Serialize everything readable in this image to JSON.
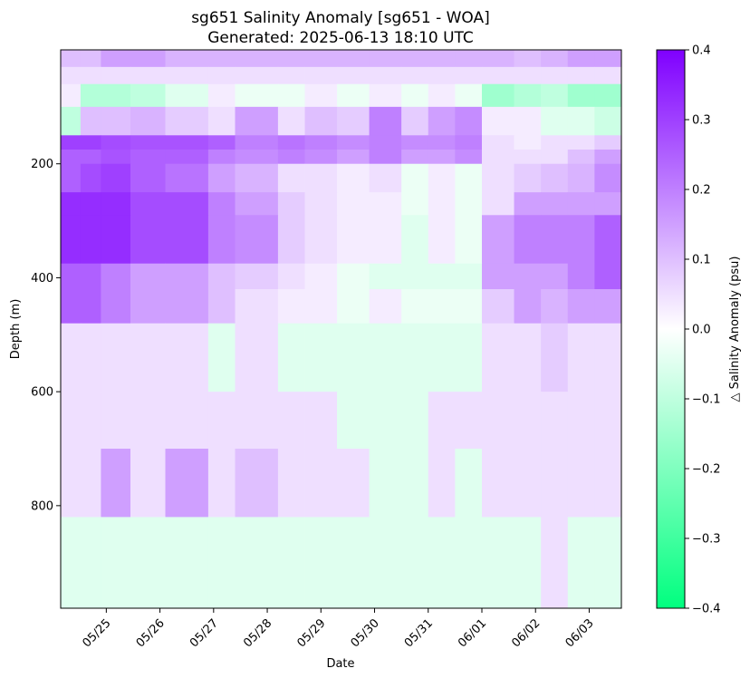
{
  "chart_data": {
    "type": "heatmap",
    "title": "sg651 Salinity Anomaly [sg651 - WOA]",
    "subtitle": "Generated: 2025-06-13 18:10 UTC",
    "xlabel": "Date",
    "ylabel": "Depth (m)",
    "colorbar_label": "△ Salinity Anomaly (psu)",
    "x_ticks": [
      "05/25",
      "05/26",
      "05/27",
      "05/28",
      "05/29",
      "05/30",
      "05/31",
      "06/01",
      "06/02",
      "06/03"
    ],
    "x_tick_days": [
      1,
      2,
      3,
      4,
      5,
      6,
      7,
      8,
      9,
      10
    ],
    "xlim_days": [
      0.15,
      10.6
    ],
    "y_ticks": [
      200,
      400,
      600,
      800
    ],
    "ylim": [
      980,
      0
    ],
    "colorbar_ticks": [
      0.4,
      0.3,
      0.2,
      0.1,
      0.0,
      -0.1,
      -0.2,
      -0.3,
      -0.4
    ],
    "colorbar_tick_labels": [
      "0.4",
      "0.3",
      "0.2",
      "0.1",
      "0.0",
      "−0.1",
      "−0.2",
      "−0.3",
      "−0.4"
    ],
    "vlim": [
      -0.4,
      0.4
    ],
    "colormap": {
      "negative": "#00ff7f",
      "zero": "#ffffff",
      "positive": "#7f00ff"
    },
    "x_day_breaks": [
      0.15,
      0.52,
      0.9,
      1.45,
      2.1,
      2.9,
      3.4,
      4.2,
      4.7,
      5.3,
      5.9,
      6.5,
      7.0,
      7.5,
      8.0,
      8.6,
      9.1,
      9.6,
      10.1,
      10.6
    ],
    "depth_breaks": [
      0,
      30,
      60,
      100,
      150,
      175,
      200,
      250,
      290,
      375,
      420,
      480,
      600,
      700,
      820,
      980
    ],
    "values": [
      [
        0.1,
        0.1,
        0.15,
        0.15,
        0.12,
        0.12,
        0.12,
        0.12,
        0.12,
        0.12,
        0.12,
        0.12,
        0.12,
        0.12,
        0.12,
        0.1,
        0.12,
        0.15,
        0.15
      ],
      [
        0.05,
        0.05,
        0.05,
        0.05,
        0.05,
        0.05,
        0.05,
        0.05,
        0.05,
        0.05,
        0.05,
        0.05,
        0.05,
        0.05,
        0.05,
        0.05,
        0.05,
        0.05,
        0.05
      ],
      [
        0.03,
        -0.12,
        -0.12,
        -0.1,
        -0.05,
        0.03,
        -0.03,
        -0.03,
        0.03,
        -0.03,
        0.03,
        -0.03,
        0.03,
        -0.03,
        -0.15,
        -0.12,
        -0.1,
        -0.15,
        -0.15
      ],
      [
        -0.1,
        0.1,
        0.1,
        0.12,
        0.08,
        0.05,
        0.15,
        0.05,
        0.1,
        0.08,
        0.2,
        0.08,
        0.15,
        0.18,
        0.03,
        0.03,
        -0.05,
        -0.05,
        -0.08
      ],
      [
        0.3,
        0.3,
        0.28,
        0.27,
        0.27,
        0.25,
        0.2,
        0.22,
        0.2,
        0.18,
        0.2,
        0.18,
        0.18,
        0.2,
        0.05,
        0.03,
        0.05,
        0.05,
        0.08
      ],
      [
        0.25,
        0.25,
        0.27,
        0.25,
        0.25,
        0.2,
        0.18,
        0.2,
        0.18,
        0.15,
        0.2,
        0.15,
        0.15,
        0.18,
        0.05,
        0.05,
        0.05,
        0.1,
        0.15
      ],
      [
        0.25,
        0.28,
        0.3,
        0.25,
        0.22,
        0.15,
        0.12,
        0.05,
        0.05,
        0.03,
        0.05,
        -0.03,
        0.03,
        -0.03,
        0.05,
        0.08,
        0.1,
        0.12,
        0.18
      ],
      [
        0.33,
        0.33,
        0.33,
        0.28,
        0.28,
        0.2,
        0.15,
        0.08,
        0.05,
        0.03,
        0.03,
        -0.03,
        0.03,
        -0.03,
        0.05,
        0.15,
        0.15,
        0.15,
        0.15
      ],
      [
        0.33,
        0.33,
        0.33,
        0.28,
        0.28,
        0.2,
        0.18,
        0.08,
        0.05,
        0.03,
        0.03,
        -0.05,
        0.03,
        -0.03,
        0.15,
        0.2,
        0.2,
        0.2,
        0.25
      ],
      [
        0.25,
        0.25,
        0.2,
        0.15,
        0.15,
        0.1,
        0.08,
        0.05,
        0.03,
        -0.03,
        -0.05,
        -0.05,
        -0.05,
        -0.05,
        0.15,
        0.15,
        0.15,
        0.2,
        0.25
      ],
      [
        0.25,
        0.25,
        0.2,
        0.15,
        0.15,
        0.1,
        0.05,
        0.03,
        0.03,
        -0.03,
        0.03,
        -0.03,
        -0.03,
        -0.03,
        0.08,
        0.15,
        0.12,
        0.15,
        0.15
      ],
      [
        0.05,
        0.05,
        0.05,
        0.05,
        0.05,
        -0.05,
        0.05,
        -0.05,
        -0.05,
        -0.05,
        -0.05,
        -0.05,
        -0.05,
        -0.05,
        0.05,
        0.05,
        0.08,
        0.05,
        0.05
      ],
      [
        0.05,
        0.05,
        0.05,
        0.05,
        0.05,
        0.05,
        0.05,
        0.05,
        0.05,
        -0.05,
        -0.05,
        -0.05,
        0.05,
        0.05,
        0.05,
        0.05,
        0.05,
        0.05,
        0.05
      ],
      [
        0.05,
        0.05,
        0.15,
        0.05,
        0.15,
        0.05,
        0.1,
        0.05,
        0.05,
        0.05,
        -0.05,
        -0.05,
        0.05,
        -0.05,
        0.05,
        0.05,
        0.05,
        0.05,
        0.05
      ],
      [
        -0.05,
        -0.05,
        -0.05,
        -0.05,
        -0.05,
        -0.05,
        -0.05,
        -0.05,
        -0.05,
        -0.05,
        -0.05,
        -0.05,
        -0.05,
        -0.05,
        -0.05,
        -0.05,
        0.05,
        -0.05,
        -0.05
      ]
    ]
  }
}
